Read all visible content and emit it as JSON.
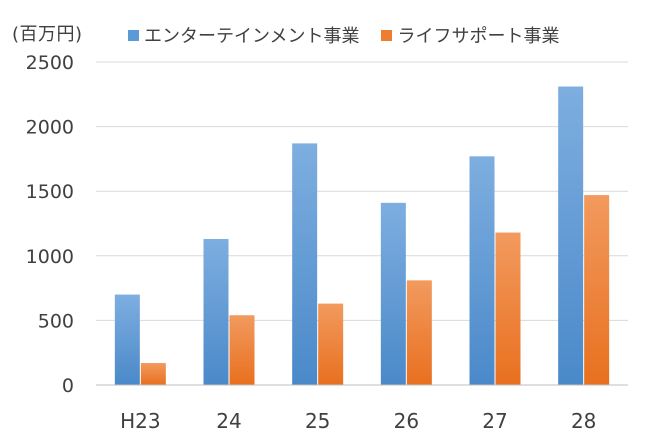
{
  "chart_data": {
    "type": "bar",
    "unit_label": "(百万円)",
    "categories": [
      "H23",
      "24",
      "25",
      "26",
      "27",
      "28"
    ],
    "series": [
      {
        "name": "エンターテインメント事業",
        "color": "#5b9bd5",
        "values": [
          700,
          1130,
          1870,
          1410,
          1770,
          2310
        ]
      },
      {
        "name": "ライフサポート事業",
        "color": "#ed7d31",
        "values": [
          170,
          540,
          630,
          810,
          1180,
          1470
        ]
      }
    ],
    "yticks": [
      "0",
      "500",
      "1000",
      "1500",
      "2000",
      "2500"
    ],
    "ylim": [
      0,
      2500
    ],
    "grid": true,
    "legend_position": "top"
  }
}
